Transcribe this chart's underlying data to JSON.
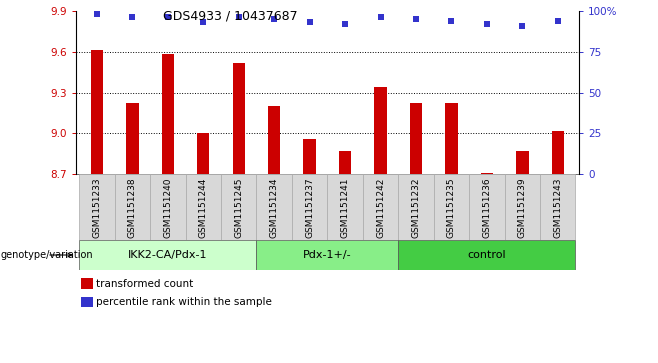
{
  "title": "GDS4933 / 10437687",
  "samples": [
    "GSM1151233",
    "GSM1151238",
    "GSM1151240",
    "GSM1151244",
    "GSM1151245",
    "GSM1151234",
    "GSM1151237",
    "GSM1151241",
    "GSM1151242",
    "GSM1151232",
    "GSM1151235",
    "GSM1151236",
    "GSM1151239",
    "GSM1151243"
  ],
  "bar_values": [
    9.61,
    9.22,
    9.58,
    9.0,
    9.52,
    9.2,
    8.96,
    8.87,
    9.34,
    9.22,
    9.22,
    8.71,
    8.87,
    9.02
  ],
  "percentile_values": [
    98,
    96,
    96,
    93,
    96,
    95,
    93,
    92,
    96,
    95,
    94,
    92,
    91,
    94
  ],
  "bar_color": "#cc0000",
  "dot_color": "#3333cc",
  "ylim_left": [
    8.7,
    9.9
  ],
  "ylim_right": [
    0,
    100
  ],
  "yticks_left": [
    8.7,
    9.0,
    9.3,
    9.6,
    9.9
  ],
  "yticks_right": [
    0,
    25,
    50,
    75,
    100
  ],
  "ytick_labels_right": [
    "0",
    "25",
    "50",
    "75",
    "100%"
  ],
  "grid_values": [
    9.0,
    9.3,
    9.6
  ],
  "groups": [
    {
      "label": "IKK2-CA/Pdx-1",
      "start": 0,
      "end": 5,
      "color": "#ccffcc"
    },
    {
      "label": "Pdx-1+/-",
      "start": 5,
      "end": 9,
      "color": "#88ee88"
    },
    {
      "label": "control",
      "start": 9,
      "end": 14,
      "color": "#44cc44"
    }
  ],
  "genotype_label": "genotype/variation",
  "legend_items": [
    {
      "label": "transformed count",
      "color": "#cc0000"
    },
    {
      "label": "percentile rank within the sample",
      "color": "#3333cc"
    }
  ],
  "sample_box_color": "#d8d8d8",
  "sample_box_edge": "#aaaaaa"
}
